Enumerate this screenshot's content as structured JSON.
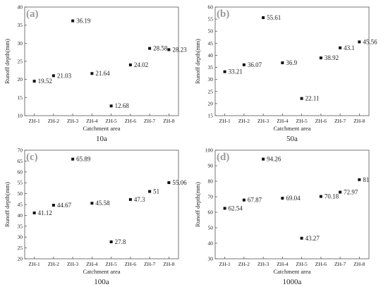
{
  "chart_data": [
    {
      "type": "scatter",
      "panel_label": "(a)",
      "caption": "10a",
      "xlabel": "Catchment area",
      "ylabel": "Runoff depth(mm)",
      "categories": [
        "ZH-1",
        "ZH-2",
        "ZH-3",
        "ZH-4",
        "ZH-5",
        "ZH-6",
        "ZH-7",
        "ZH-8"
      ],
      "values": [
        19.52,
        21.03,
        36.19,
        21.64,
        12.68,
        24.02,
        28.58,
        28.23
      ],
      "value_labels": [
        "19.52",
        "21.03",
        "36.19",
        "21.64",
        "12.68",
        "24.02",
        "28.58",
        "28.23"
      ],
      "ylim": [
        10,
        40
      ],
      "yticks": [
        10,
        15,
        20,
        25,
        30,
        35,
        40
      ],
      "grid": false
    },
    {
      "type": "scatter",
      "panel_label": "(b)",
      "caption": "50a",
      "xlabel": "Catchment area",
      "ylabel": "Runoff depth(mm)",
      "categories": [
        "ZH-1",
        "ZH-2",
        "ZH-3",
        "ZH-4",
        "ZH-5",
        "ZH-6",
        "ZH-7",
        "ZH-8"
      ],
      "values": [
        33.21,
        36.07,
        55.61,
        36.9,
        22.11,
        38.92,
        43.1,
        45.56
      ],
      "value_labels": [
        "33.21",
        "36.07",
        "55.61",
        "36.9",
        "22.11",
        "38.92",
        "43.1",
        "45.56"
      ],
      "ylim": [
        15,
        60
      ],
      "yticks": [
        15,
        20,
        25,
        30,
        35,
        40,
        45,
        50,
        55,
        60
      ],
      "grid": false
    },
    {
      "type": "scatter",
      "panel_label": "(c)",
      "caption": "100a",
      "xlabel": "Catchment area",
      "ylabel": "Runoff depth(mm)",
      "categories": [
        "ZH-1",
        "ZH-2",
        "ZH-3",
        "ZH-4",
        "ZH-5",
        "ZH-6",
        "ZH-7",
        "ZH-8"
      ],
      "values": [
        41.12,
        44.67,
        65.89,
        45.58,
        27.8,
        47.3,
        51,
        55.06
      ],
      "value_labels": [
        "41.12",
        "44.67",
        "65.89",
        "45.58",
        "27.8",
        "47.3",
        "51",
        "55.06"
      ],
      "ylim": [
        20,
        70
      ],
      "yticks": [
        20,
        25,
        30,
        35,
        40,
        45,
        50,
        55,
        60,
        65,
        70
      ],
      "grid": false
    },
    {
      "type": "scatter",
      "panel_label": "(d)",
      "caption": "1000a",
      "xlabel": "Catchment area",
      "ylabel": "Runoff depth(mm)",
      "categories": [
        "ZH-1",
        "ZH-2",
        "ZH-3",
        "ZH-4",
        "ZH-5",
        "ZH-6",
        "ZH-7",
        "ZH-8"
      ],
      "values": [
        62.54,
        67.87,
        94.26,
        69.04,
        43.27,
        70.18,
        72.97,
        81
      ],
      "value_labels": [
        "62.54",
        "67.87",
        "94.26",
        "69.04",
        "43.27",
        "70.18",
        "72.97",
        "81"
      ],
      "ylim": [
        30,
        100
      ],
      "yticks": [
        30,
        40,
        50,
        60,
        70,
        80,
        90,
        100
      ],
      "grid": false
    }
  ],
  "style": {
    "axis_color": "#555555",
    "marker_color": "#111111",
    "panel_letter_color": "#9a9a9a"
  }
}
